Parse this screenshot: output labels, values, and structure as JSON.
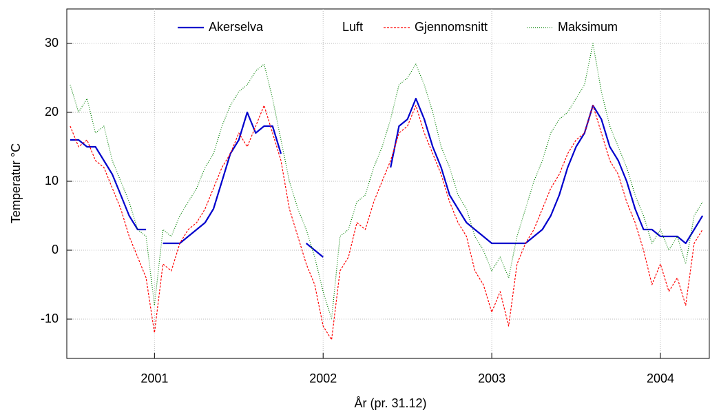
{
  "chart_data": {
    "type": "line",
    "xlabel": "År (pr. 31.12)",
    "ylabel": "Temperatur °C",
    "legend": "top",
    "legend_group_label": "Luft",
    "grid": true,
    "xlim": [
      2000.48,
      2004.29
    ],
    "ylim": [
      -15.7,
      35
    ],
    "xticks": [
      2001,
      2002,
      2003,
      2004
    ],
    "yticks": [
      -10,
      0,
      10,
      20,
      30
    ],
    "x": [
      2000.5,
      2000.55,
      2000.6,
      2000.65,
      2000.7,
      2000.75,
      2000.8,
      2000.85,
      2000.9,
      2000.95,
      2001,
      2001.05,
      2001.1,
      2001.15,
      2001.2,
      2001.25,
      2001.3,
      2001.35,
      2001.4,
      2001.45,
      2001.5,
      2001.55,
      2001.6,
      2001.65,
      2001.7,
      2001.75,
      2001.8,
      2001.85,
      2001.9,
      2001.95,
      2002,
      2002.05,
      2002.1,
      2002.15,
      2002.2,
      2002.25,
      2002.3,
      2002.35,
      2002.4,
      2002.45,
      2002.5,
      2002.55,
      2002.6,
      2002.65,
      2002.7,
      2002.75,
      2002.8,
      2002.85,
      2002.9,
      2002.95,
      2003,
      2003.05,
      2003.1,
      2003.15,
      2003.2,
      2003.25,
      2003.3,
      2003.35,
      2003.4,
      2003.45,
      2003.5,
      2003.55,
      2003.6,
      2003.65,
      2003.7,
      2003.75,
      2003.8,
      2003.85,
      2003.9,
      2003.95,
      2004,
      2004.05,
      2004.1,
      2004.15,
      2004.2,
      2004.25
    ],
    "series": [
      {
        "name": "Akerselva",
        "color": "#0000cc",
        "dash": "none",
        "width": 2.2,
        "values": [
          16,
          16,
          15,
          15,
          13,
          11,
          8,
          5,
          3,
          3,
          null,
          1,
          1,
          1,
          2,
          3,
          4,
          6,
          10,
          14,
          16,
          20,
          17,
          18,
          18,
          14,
          null,
          null,
          1,
          0,
          -1,
          null,
          null,
          null,
          null,
          null,
          null,
          null,
          12,
          18,
          19,
          22,
          19,
          15,
          12,
          8,
          6,
          4,
          3,
          2,
          1,
          1,
          1,
          1,
          1,
          2,
          3,
          5,
          8,
          12,
          15,
          17,
          21,
          19,
          15,
          13,
          10,
          6,
          3,
          3,
          2,
          2,
          2,
          1,
          3,
          5
        ]
      },
      {
        "name": "Gjennomsnitt",
        "color": "#ff0000",
        "dash": "3,2",
        "width": 1.2,
        "values": [
          18,
          15,
          16,
          13,
          12,
          9,
          6,
          2,
          -1,
          -4,
          -12,
          -2,
          -3,
          1,
          3,
          4,
          6,
          9,
          12,
          14,
          17,
          15,
          18,
          21,
          17,
          13,
          6,
          2,
          -2,
          -5,
          -11,
          -13,
          -3,
          -1,
          4,
          3,
          7,
          10,
          13,
          17,
          18,
          21,
          17,
          14,
          11,
          7,
          4,
          2,
          -3,
          -5,
          -9,
          -6,
          -11,
          -2,
          1,
          3,
          6,
          9,
          11,
          14,
          16,
          17,
          21,
          17,
          13,
          11,
          7,
          4,
          0,
          -5,
          -2,
          -6,
          -4,
          -8,
          1,
          3
        ]
      },
      {
        "name": "Maksimum",
        "color": "#008000",
        "dash": "1,2",
        "width": 1.2,
        "values": [
          24,
          20,
          22,
          17,
          18,
          13,
          10,
          7,
          3,
          2,
          -8,
          3,
          2,
          5,
          7,
          9,
          12,
          14,
          18,
          21,
          23,
          24,
          26,
          27,
          22,
          16,
          10,
          6,
          3,
          -1,
          -6,
          -10,
          2,
          3,
          7,
          8,
          12,
          15,
          19,
          24,
          25,
          27,
          24,
          20,
          15,
          12,
          8,
          6,
          2,
          0,
          -3,
          -1,
          -4,
          2,
          6,
          10,
          13,
          17,
          19,
          20,
          22,
          24,
          30,
          23,
          18,
          15,
          12,
          8,
          5,
          1,
          3,
          0,
          2,
          -2,
          5,
          7
        ]
      }
    ]
  }
}
